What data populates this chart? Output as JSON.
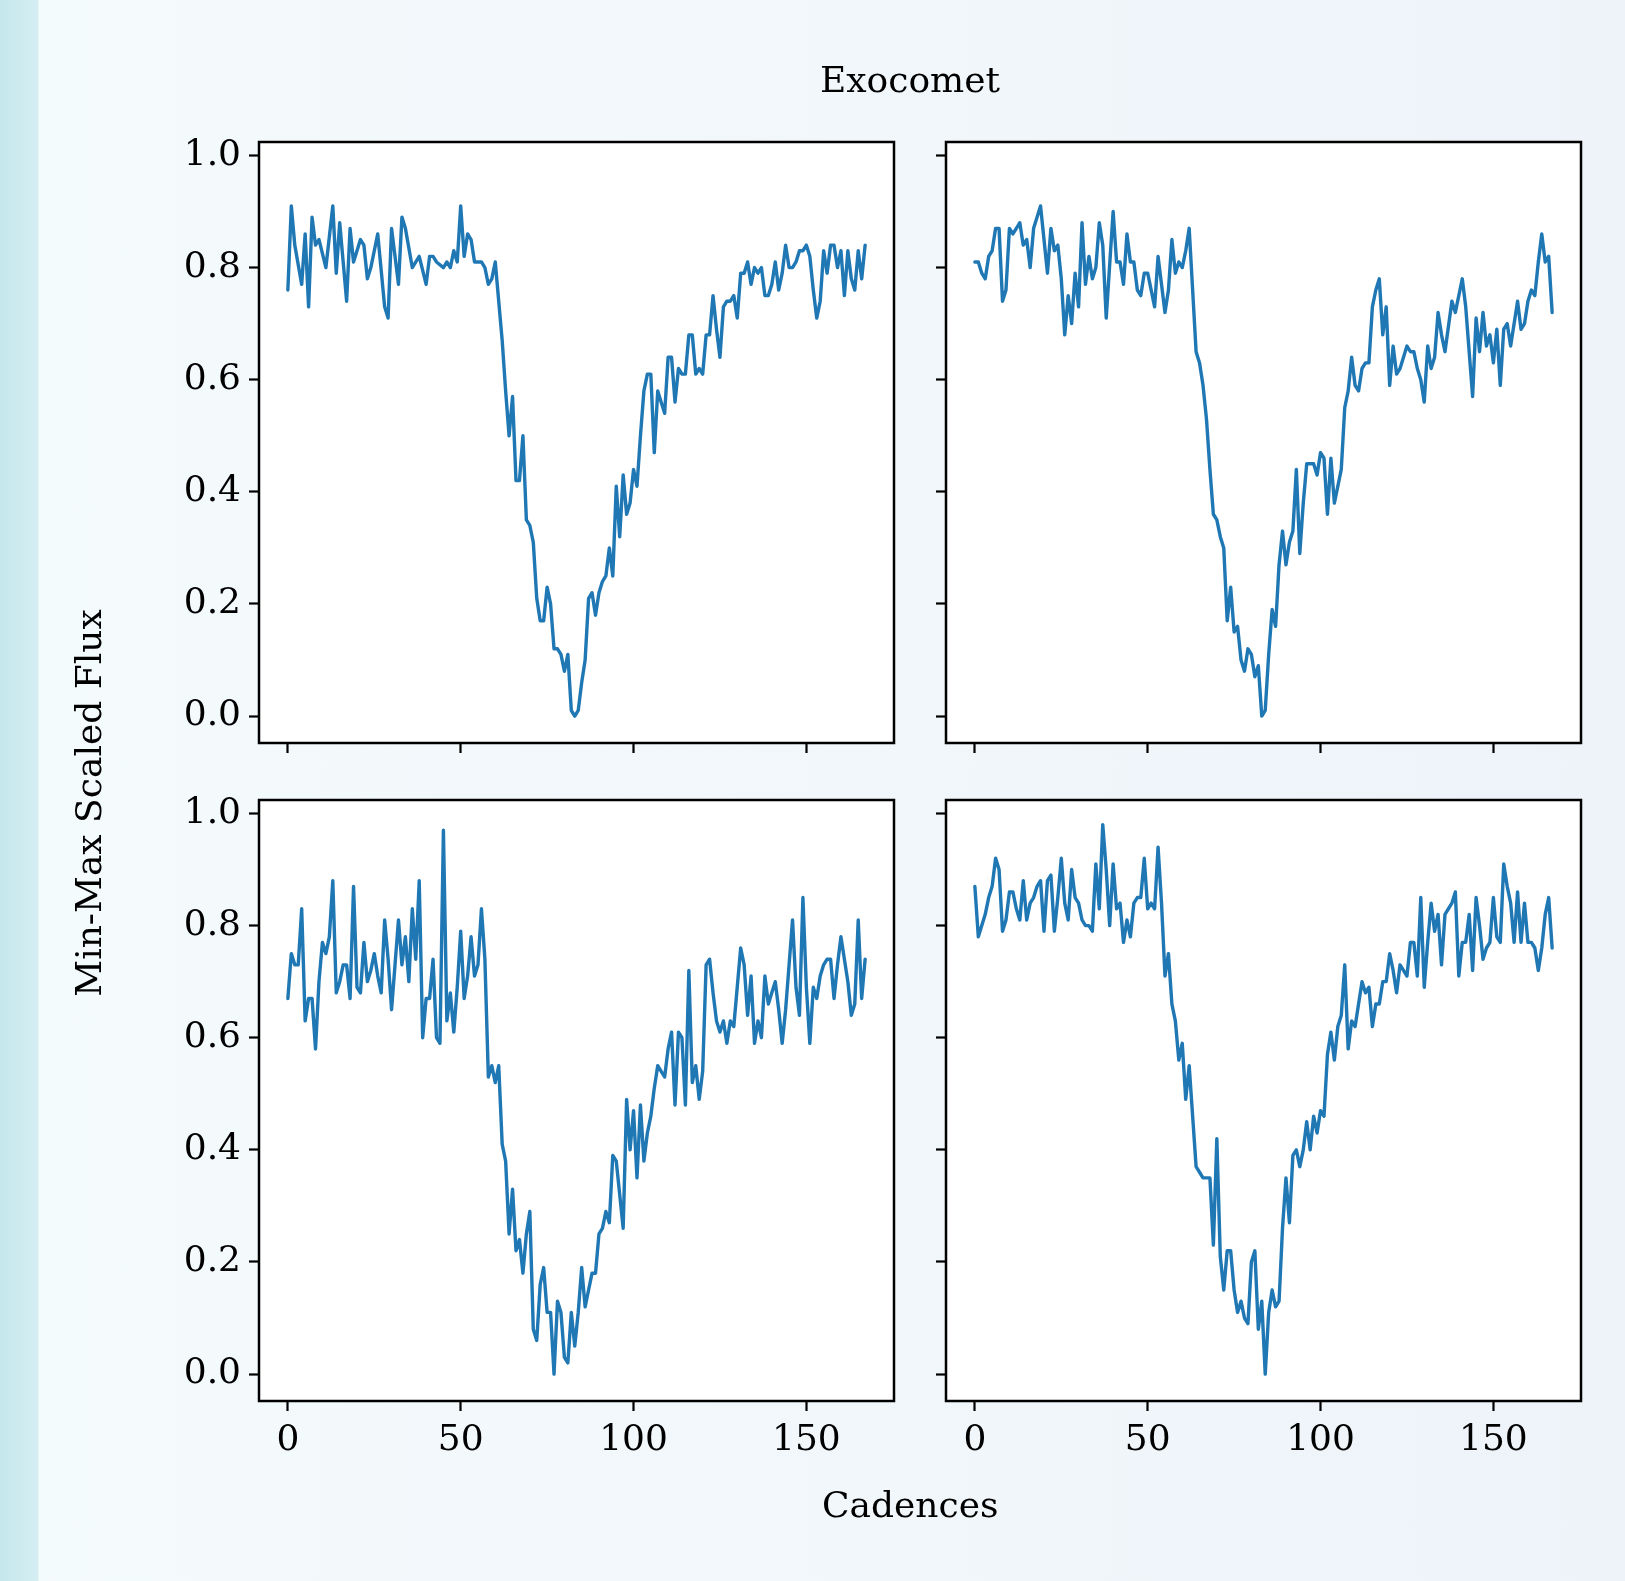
{
  "chart_data": [
    {
      "type": "line",
      "title": "Exocomet",
      "ylabel": "Min-Max Scaled Flux",
      "xlim": [
        -8.35,
        175.35
      ],
      "ylim": [
        -0.048,
        1.024
      ],
      "xticks": [
        0,
        50,
        100,
        150
      ],
      "yticks": [
        {
          "value": 0,
          "label": "0.0"
        },
        {
          "value": 0.2,
          "label": "0.2"
        },
        {
          "value": 0.4,
          "label": "0.4"
        },
        {
          "value": 0.6,
          "label": "0.6"
        },
        {
          "value": 0.8,
          "label": "0.8"
        },
        {
          "value": 1,
          "label": "1.0"
        }
      ],
      "grid": false,
      "tick_labels": "y",
      "series": [
        {
          "color": "#1f77b4",
          "x": [
            0,
            1,
            2,
            4,
            5,
            6,
            7,
            8,
            9,
            11,
            13,
            14,
            15,
            17,
            18,
            19,
            21,
            22,
            23,
            24,
            26,
            28,
            29,
            30,
            32,
            33,
            34,
            36,
            38,
            40,
            41,
            42,
            43,
            45,
            46,
            47,
            48,
            49,
            50,
            51,
            52,
            53,
            54,
            55,
            56,
            57,
            58,
            59,
            60,
            62,
            63,
            64,
            65,
            66,
            67,
            68,
            69,
            70,
            71,
            72,
            73,
            74,
            75,
            76,
            77,
            78,
            79,
            80,
            81,
            82,
            83,
            84,
            85,
            86,
            87,
            88,
            89,
            90,
            91,
            92,
            93,
            94,
            95,
            96,
            97,
            98,
            99,
            100,
            101,
            102,
            103,
            104,
            105,
            106,
            107,
            108,
            109,
            110,
            111,
            112,
            113,
            114,
            115,
            116,
            117,
            118,
            119,
            120,
            121,
            122,
            123,
            124,
            125,
            126,
            127,
            128,
            129,
            130,
            131,
            132,
            133,
            134,
            135,
            136,
            137,
            138,
            139,
            140,
            141,
            142,
            143,
            144,
            145,
            146,
            147,
            148,
            149,
            150,
            151,
            152,
            153,
            154,
            155,
            156,
            157,
            158,
            159,
            160,
            161,
            162,
            163,
            164,
            165,
            166,
            167
          ],
          "values": [
            0.76,
            0.91,
            0.84,
            0.77,
            0.86,
            0.73,
            0.89,
            0.84,
            0.85,
            0.8,
            0.91,
            0.79,
            0.88,
            0.74,
            0.87,
            0.81,
            0.85,
            0.84,
            0.78,
            0.8,
            0.86,
            0.73,
            0.71,
            0.87,
            0.77,
            0.89,
            0.87,
            0.8,
            0.82,
            0.77,
            0.82,
            0.82,
            0.81,
            0.8,
            0.81,
            0.8,
            0.83,
            0.81,
            0.91,
            0.82,
            0.86,
            0.85,
            0.81,
            0.81,
            0.81,
            0.8,
            0.77,
            0.78,
            0.81,
            0.67,
            0.58,
            0.5,
            0.57,
            0.42,
            0.42,
            0.5,
            0.35,
            0.34,
            0.31,
            0.21,
            0.17,
            0.17,
            0.23,
            0.2,
            0.12,
            0.12,
            0.11,
            0.08,
            0.11,
            0.01,
            0.0,
            0.01,
            0.06,
            0.1,
            0.21,
            0.22,
            0.18,
            0.22,
            0.24,
            0.25,
            0.3,
            0.25,
            0.41,
            0.32,
            0.43,
            0.36,
            0.38,
            0.44,
            0.41,
            0.5,
            0.58,
            0.61,
            0.61,
            0.47,
            0.58,
            0.56,
            0.54,
            0.64,
            0.64,
            0.56,
            0.62,
            0.61,
            0.61,
            0.68,
            0.68,
            0.61,
            0.62,
            0.61,
            0.68,
            0.68,
            0.75,
            0.69,
            0.64,
            0.73,
            0.74,
            0.74,
            0.75,
            0.71,
            0.79,
            0.79,
            0.81,
            0.77,
            0.8,
            0.79,
            0.8,
            0.75,
            0.75,
            0.77,
            0.81,
            0.76,
            0.79,
            0.84,
            0.8,
            0.8,
            0.81,
            0.83,
            0.83,
            0.84,
            0.82,
            0.76,
            0.71,
            0.74,
            0.83,
            0.79,
            0.84,
            0.84,
            0.8,
            0.83,
            0.75,
            0.83,
            0.78,
            0.76,
            0.83,
            0.78,
            0.84
          ]
        }
      ]
    },
    {
      "type": "line",
      "xlim": [
        -8.35,
        175.35
      ],
      "ylim": [
        -0.048,
        1.024
      ],
      "xticks": [
        0,
        50,
        100,
        150
      ],
      "yticks": [
        0,
        0.2,
        0.4,
        0.6,
        0.8,
        1
      ],
      "grid": false,
      "tick_labels": false,
      "series": [
        {
          "color": "#1f77b4",
          "x": [
            0,
            1,
            2,
            3,
            4,
            5,
            6,
            7,
            8,
            9,
            10,
            11,
            13,
            14,
            15,
            16,
            17,
            19,
            21,
            22,
            23,
            24,
            25,
            26,
            27,
            28,
            29,
            30,
            31,
            32,
            33,
            34,
            35,
            36,
            37,
            38,
            40,
            41,
            42,
            43,
            44,
            45,
            46,
            47,
            48,
            49,
            50,
            52,
            53,
            55,
            56,
            57,
            58,
            59,
            60,
            61,
            62,
            63,
            64,
            65,
            66,
            67,
            68,
            69,
            70,
            71,
            72,
            73,
            74,
            75,
            76,
            77,
            78,
            79,
            80,
            81,
            82,
            83,
            84,
            85,
            86,
            87,
            88,
            89,
            90,
            91,
            92,
            93,
            94,
            95,
            96,
            97,
            98,
            99,
            100,
            101,
            102,
            103,
            104,
            106,
            107,
            108,
            109,
            110,
            111,
            112,
            113,
            114,
            115,
            116,
            117,
            118,
            119,
            120,
            121,
            122,
            123,
            124,
            125,
            126,
            127,
            128,
            129,
            130,
            131,
            132,
            133,
            134,
            135,
            136,
            138,
            139,
            141,
            142,
            144,
            145,
            146,
            147,
            148,
            149,
            150,
            151,
            152,
            153,
            154,
            155,
            157,
            158,
            159,
            160,
            161,
            162,
            163,
            164,
            165,
            166,
            167
          ],
          "values": [
            0.81,
            0.81,
            0.79,
            0.78,
            0.82,
            0.83,
            0.87,
            0.87,
            0.74,
            0.76,
            0.87,
            0.86,
            0.88,
            0.84,
            0.85,
            0.8,
            0.87,
            0.91,
            0.79,
            0.87,
            0.83,
            0.84,
            0.78,
            0.68,
            0.75,
            0.7,
            0.79,
            0.73,
            0.88,
            0.77,
            0.82,
            0.78,
            0.8,
            0.88,
            0.84,
            0.71,
            0.9,
            0.81,
            0.81,
            0.77,
            0.86,
            0.81,
            0.81,
            0.76,
            0.75,
            0.79,
            0.79,
            0.73,
            0.82,
            0.72,
            0.76,
            0.85,
            0.79,
            0.81,
            0.8,
            0.83,
            0.87,
            0.76,
            0.65,
            0.63,
            0.59,
            0.53,
            0.44,
            0.36,
            0.35,
            0.32,
            0.3,
            0.17,
            0.23,
            0.15,
            0.16,
            0.1,
            0.08,
            0.12,
            0.11,
            0.07,
            0.09,
            0.0,
            0.01,
            0.11,
            0.19,
            0.16,
            0.27,
            0.33,
            0.27,
            0.31,
            0.33,
            0.44,
            0.29,
            0.38,
            0.45,
            0.45,
            0.45,
            0.43,
            0.47,
            0.46,
            0.36,
            0.46,
            0.38,
            0.44,
            0.55,
            0.58,
            0.64,
            0.59,
            0.58,
            0.62,
            0.63,
            0.63,
            0.73,
            0.76,
            0.78,
            0.68,
            0.73,
            0.59,
            0.66,
            0.61,
            0.62,
            0.64,
            0.66,
            0.65,
            0.65,
            0.62,
            0.6,
            0.56,
            0.66,
            0.62,
            0.64,
            0.72,
            0.68,
            0.65,
            0.74,
            0.72,
            0.78,
            0.73,
            0.57,
            0.71,
            0.65,
            0.72,
            0.66,
            0.68,
            0.63,
            0.69,
            0.59,
            0.69,
            0.7,
            0.66,
            0.74,
            0.69,
            0.7,
            0.74,
            0.76,
            0.75,
            0.81,
            0.86,
            0.81,
            0.82,
            0.72
          ]
        }
      ]
    },
    {
      "type": "line",
      "xlabel": "Cadences",
      "xlim": [
        -8.35,
        175.35
      ],
      "ylim": [
        -0.048,
        1.024
      ],
      "xticks": [
        0,
        50,
        100,
        150
      ],
      "yticks": [
        {
          "value": 0,
          "label": "0.0"
        },
        {
          "value": 0.2,
          "label": "0.2"
        },
        {
          "value": 0.4,
          "label": "0.4"
        },
        {
          "value": 0.6,
          "label": "0.6"
        },
        {
          "value": 0.8,
          "label": "0.8"
        },
        {
          "value": 1,
          "label": "1.0"
        }
      ],
      "grid": false,
      "series": [
        {
          "color": "#1f77b4",
          "x": [
            0,
            1,
            2,
            3,
            4,
            5,
            6,
            7,
            8,
            9,
            10,
            11,
            12,
            13,
            14,
            15,
            16,
            17,
            18,
            19,
            20,
            21,
            22,
            23,
            24,
            25,
            26,
            27,
            28,
            29,
            30,
            31,
            32,
            33,
            34,
            35,
            36,
            37,
            38,
            39,
            40,
            41,
            42,
            43,
            44,
            45,
            46,
            47,
            48,
            49,
            50,
            51,
            52,
            53,
            54,
            55,
            56,
            57,
            58,
            59,
            60,
            61,
            62,
            63,
            64,
            65,
            66,
            67,
            68,
            69,
            70,
            71,
            72,
            73,
            74,
            75,
            76,
            77,
            78,
            79,
            80,
            81,
            82,
            83,
            84,
            85,
            86,
            87,
            88,
            89,
            90,
            91,
            92,
            93,
            94,
            95,
            96,
            97,
            98,
            99,
            100,
            101,
            102,
            103,
            104,
            105,
            106,
            107,
            108,
            109,
            110,
            111,
            112,
            113,
            114,
            115,
            116,
            117,
            118,
            119,
            120,
            121,
            122,
            123,
            124,
            125,
            126,
            127,
            128,
            129,
            130,
            131,
            132,
            133,
            134,
            135,
            136,
            137,
            138,
            139,
            140,
            141,
            142,
            143,
            144,
            145,
            146,
            147,
            148,
            149,
            150,
            151,
            152,
            153,
            154,
            155,
            156,
            157,
            158,
            159,
            160,
            161,
            162,
            163,
            164,
            165,
            166,
            167
          ],
          "values": [
            0.67,
            0.75,
            0.73,
            0.73,
            0.83,
            0.63,
            0.67,
            0.67,
            0.58,
            0.7,
            0.77,
            0.75,
            0.78,
            0.88,
            0.68,
            0.7,
            0.73,
            0.73,
            0.67,
            0.87,
            0.69,
            0.68,
            0.77,
            0.7,
            0.72,
            0.75,
            0.71,
            0.68,
            0.81,
            0.74,
            0.65,
            0.73,
            0.81,
            0.73,
            0.78,
            0.7,
            0.83,
            0.74,
            0.88,
            0.6,
            0.67,
            0.67,
            0.74,
            0.6,
            0.59,
            0.97,
            0.63,
            0.68,
            0.61,
            0.69,
            0.79,
            0.67,
            0.71,
            0.78,
            0.71,
            0.73,
            0.83,
            0.74,
            0.53,
            0.55,
            0.52,
            0.55,
            0.41,
            0.38,
            0.25,
            0.33,
            0.22,
            0.24,
            0.18,
            0.25,
            0.29,
            0.08,
            0.06,
            0.16,
            0.19,
            0.11,
            0.11,
            0.0,
            0.13,
            0.11,
            0.03,
            0.02,
            0.11,
            0.05,
            0.11,
            0.19,
            0.12,
            0.15,
            0.18,
            0.18,
            0.25,
            0.26,
            0.29,
            0.27,
            0.39,
            0.38,
            0.32,
            0.26,
            0.49,
            0.4,
            0.47,
            0.35,
            0.48,
            0.38,
            0.43,
            0.46,
            0.51,
            0.55,
            0.54,
            0.53,
            0.58,
            0.61,
            0.48,
            0.61,
            0.6,
            0.48,
            0.72,
            0.52,
            0.55,
            0.49,
            0.54,
            0.73,
            0.74,
            0.68,
            0.63,
            0.61,
            0.63,
            0.59,
            0.63,
            0.62,
            0.69,
            0.76,
            0.73,
            0.64,
            0.71,
            0.59,
            0.63,
            0.6,
            0.71,
            0.66,
            0.68,
            0.7,
            0.65,
            0.59,
            0.65,
            0.73,
            0.81,
            0.69,
            0.64,
            0.85,
            0.69,
            0.59,
            0.69,
            0.67,
            0.71,
            0.73,
            0.74,
            0.74,
            0.67,
            0.73,
            0.78,
            0.74,
            0.7,
            0.64,
            0.66,
            0.81,
            0.67,
            0.74
          ]
        }
      ]
    },
    {
      "type": "line",
      "xlim": [
        -8.35,
        175.35
      ],
      "ylim": [
        -0.048,
        1.024
      ],
      "xticks": [
        0,
        50,
        100,
        150
      ],
      "yticks": [
        0,
        0.2,
        0.4,
        0.6,
        0.8,
        1
      ],
      "grid": false,
      "tick_labels": "x",
      "series": [
        {
          "color": "#1f77b4",
          "x": [
            0,
            1,
            2,
            3,
            4,
            5,
            6,
            7,
            8,
            9,
            10,
            11,
            12,
            13,
            14,
            15,
            16,
            17,
            18,
            19,
            20,
            21,
            22,
            23,
            24,
            25,
            26,
            27,
            28,
            29,
            30,
            31,
            32,
            33,
            34,
            35,
            36,
            37,
            38,
            39,
            40,
            41,
            42,
            43,
            44,
            45,
            46,
            47,
            48,
            49,
            50,
            51,
            52,
            53,
            54,
            55,
            56,
            57,
            58,
            59,
            60,
            61,
            62,
            63,
            64,
            65,
            66,
            67,
            68,
            69,
            70,
            71,
            72,
            73,
            74,
            75,
            76,
            77,
            78,
            79,
            80,
            81,
            82,
            83,
            84,
            85,
            86,
            87,
            88,
            89,
            90,
            91,
            92,
            93,
            94,
            95,
            96,
            97,
            98,
            99,
            100,
            101,
            102,
            103,
            104,
            105,
            106,
            107,
            108,
            109,
            110,
            111,
            112,
            113,
            114,
            115,
            116,
            117,
            118,
            119,
            120,
            121,
            122,
            123,
            124,
            125,
            126,
            127,
            128,
            129,
            130,
            131,
            132,
            133,
            134,
            135,
            136,
            137,
            138,
            139,
            140,
            141,
            142,
            143,
            144,
            145,
            146,
            147,
            148,
            149,
            150,
            151,
            152,
            153,
            154,
            155,
            156,
            157,
            158,
            159,
            160,
            161,
            162,
            163,
            164,
            165,
            166,
            167
          ],
          "values": [
            0.87,
            0.78,
            0.8,
            0.82,
            0.85,
            0.87,
            0.92,
            0.9,
            0.79,
            0.81,
            0.86,
            0.86,
            0.83,
            0.81,
            0.88,
            0.81,
            0.84,
            0.85,
            0.87,
            0.88,
            0.79,
            0.88,
            0.89,
            0.79,
            0.85,
            0.92,
            0.84,
            0.81,
            0.9,
            0.85,
            0.84,
            0.81,
            0.8,
            0.8,
            0.79,
            0.91,
            0.83,
            0.98,
            0.9,
            0.8,
            0.91,
            0.83,
            0.84,
            0.77,
            0.81,
            0.78,
            0.84,
            0.85,
            0.85,
            0.92,
            0.83,
            0.84,
            0.83,
            0.94,
            0.84,
            0.71,
            0.75,
            0.66,
            0.63,
            0.56,
            0.59,
            0.49,
            0.55,
            0.46,
            0.37,
            0.36,
            0.35,
            0.35,
            0.35,
            0.23,
            0.42,
            0.21,
            0.15,
            0.22,
            0.22,
            0.15,
            0.11,
            0.13,
            0.1,
            0.09,
            0.2,
            0.22,
            0.08,
            0.13,
            0.0,
            0.11,
            0.15,
            0.12,
            0.13,
            0.26,
            0.35,
            0.27,
            0.39,
            0.4,
            0.37,
            0.4,
            0.45,
            0.4,
            0.46,
            0.43,
            0.47,
            0.46,
            0.57,
            0.61,
            0.56,
            0.62,
            0.64,
            0.73,
            0.58,
            0.63,
            0.62,
            0.66,
            0.7,
            0.68,
            0.69,
            0.62,
            0.66,
            0.66,
            0.7,
            0.7,
            0.75,
            0.72,
            0.68,
            0.73,
            0.72,
            0.71,
            0.77,
            0.77,
            0.71,
            0.85,
            0.69,
            0.77,
            0.84,
            0.79,
            0.82,
            0.73,
            0.82,
            0.83,
            0.84,
            0.86,
            0.71,
            0.77,
            0.77,
            0.82,
            0.72,
            0.85,
            0.8,
            0.74,
            0.76,
            0.77,
            0.85,
            0.78,
            0.77,
            0.91,
            0.87,
            0.84,
            0.77,
            0.86,
            0.77,
            0.84,
            0.77,
            0.77,
            0.76,
            0.72,
            0.76,
            0.82,
            0.85,
            0.76
          ]
        }
      ]
    }
  ]
}
